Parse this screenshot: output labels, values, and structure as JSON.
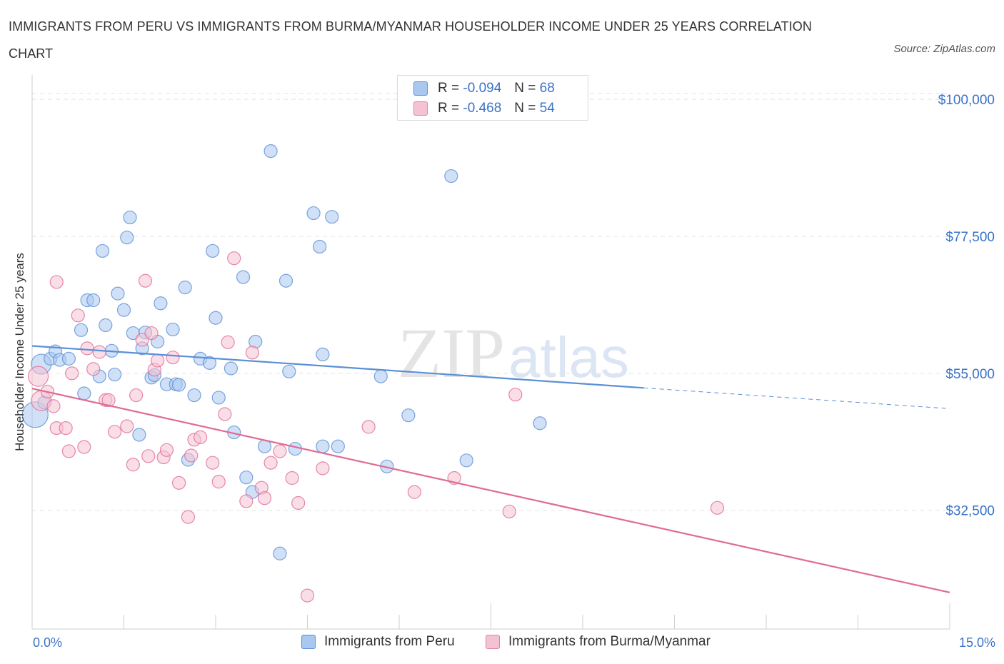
{
  "title": "IMMIGRANTS FROM PERU VS IMMIGRANTS FROM BURMA/MYANMAR HOUSEHOLDER INCOME UNDER 25 YEARS CORRELATION CHART",
  "source": "Source: ZipAtlas.com",
  "watermark": {
    "zip": "ZIP",
    "atlas": "atlas"
  },
  "legend": {
    "r_label": "R =",
    "n_label": "N =",
    "rows": [
      {
        "r": "-0.094",
        "n": "68",
        "color": "#a9c8f0",
        "stroke": "#5b8fd6"
      },
      {
        "r": "-0.468",
        "n": "54",
        "color": "#f5c2d3",
        "stroke": "#e083a4"
      }
    ]
  },
  "chart_data": {
    "type": "scatter",
    "title": "IMMIGRANTS FROM PERU VS IMMIGRANTS FROM BURMA/MYANMAR HOUSEHOLDER INCOME UNDER 25 YEARS CORRELATION CHART",
    "xlabel": "",
    "ylabel": "Householder Income Under 25 years",
    "xlim": [
      0,
      15
    ],
    "ylim": [
      13000,
      104000
    ],
    "x_tick_labels": [
      "0.0%",
      "15.0%"
    ],
    "y_ticks": [
      {
        "value": 100000,
        "label": "$100,000"
      },
      {
        "value": 77500,
        "label": "$77,500"
      },
      {
        "value": 55000,
        "label": "$55,000"
      },
      {
        "value": 32500,
        "label": "$32,500"
      }
    ],
    "grid": true,
    "legend_position": "top-center",
    "series": [
      {
        "name": "Immigrants from Peru",
        "color": "#5b8fd6",
        "fill": "#a9c8f0",
        "trend": {
          "x0": 0.0,
          "y0": 59500,
          "x1": 10.0,
          "y1": 52600,
          "dash_to": 15.0,
          "dash_y": 49200
        },
        "points": [
          [
            0.05,
            48200,
            18
          ],
          [
            0.15,
            56500,
            14
          ],
          [
            0.2,
            50200,
            9
          ],
          [
            0.3,
            57400,
            9
          ],
          [
            0.38,
            58600,
            9
          ],
          [
            0.45,
            57200,
            9
          ],
          [
            0.6,
            57400,
            9
          ],
          [
            0.8,
            62100,
            9
          ],
          [
            0.85,
            51700,
            9
          ],
          [
            0.9,
            67000,
            9
          ],
          [
            1.0,
            67000,
            9
          ],
          [
            1.1,
            54500,
            9
          ],
          [
            1.15,
            75100,
            9
          ],
          [
            1.2,
            62900,
            9
          ],
          [
            1.3,
            58700,
            9
          ],
          [
            1.35,
            54800,
            9
          ],
          [
            1.4,
            68100,
            9
          ],
          [
            1.5,
            65400,
            9
          ],
          [
            1.55,
            77300,
            9
          ],
          [
            1.6,
            80600,
            9
          ],
          [
            1.65,
            61600,
            9
          ],
          [
            1.75,
            44900,
            9
          ],
          [
            1.8,
            59100,
            9
          ],
          [
            1.85,
            61700,
            9
          ],
          [
            1.95,
            54300,
            9
          ],
          [
            2.0,
            54700,
            9
          ],
          [
            2.05,
            60200,
            9
          ],
          [
            2.1,
            66500,
            9
          ],
          [
            2.2,
            53200,
            9
          ],
          [
            2.3,
            62200,
            9
          ],
          [
            2.35,
            53200,
            9
          ],
          [
            2.4,
            53100,
            9
          ],
          [
            2.5,
            69100,
            9
          ],
          [
            2.55,
            40800,
            9
          ],
          [
            2.65,
            51400,
            9
          ],
          [
            2.75,
            57400,
            9
          ],
          [
            2.9,
            56700,
            9
          ],
          [
            2.95,
            75100,
            9
          ],
          [
            3.0,
            64100,
            9
          ],
          [
            3.05,
            51000,
            9
          ],
          [
            3.25,
            55800,
            9
          ],
          [
            3.3,
            45300,
            9
          ],
          [
            3.45,
            70800,
            9
          ],
          [
            3.5,
            37900,
            9
          ],
          [
            3.6,
            35500,
            9
          ],
          [
            3.65,
            60200,
            9
          ],
          [
            3.8,
            43000,
            9
          ],
          [
            3.9,
            91500,
            9
          ],
          [
            4.05,
            25400,
            9
          ],
          [
            4.15,
            70200,
            9
          ],
          [
            4.2,
            55300,
            9
          ],
          [
            4.3,
            42600,
            9
          ],
          [
            4.6,
            81300,
            9
          ],
          [
            4.7,
            75800,
            9
          ],
          [
            4.75,
            43000,
            9
          ],
          [
            4.75,
            58100,
            9
          ],
          [
            4.9,
            80700,
            9
          ],
          [
            5.0,
            43000,
            9
          ],
          [
            5.7,
            54500,
            9
          ],
          [
            5.8,
            39700,
            9
          ],
          [
            6.15,
            48100,
            9
          ],
          [
            6.85,
            87400,
            9
          ],
          [
            7.1,
            40700,
            9
          ],
          [
            8.3,
            46800,
            9
          ]
        ]
      },
      {
        "name": "Immigrants from Burma/Myanmar",
        "color": "#e06b93",
        "fill": "#f5c2d3",
        "trend": {
          "x0": 0.0,
          "y0": 52500,
          "x1": 15.0,
          "y1": 19000
        },
        "points": [
          [
            0.1,
            54500,
            14
          ],
          [
            0.15,
            50500,
            14
          ],
          [
            0.25,
            52000,
            9
          ],
          [
            0.35,
            49600,
            9
          ],
          [
            0.4,
            46000,
            9
          ],
          [
            0.4,
            70000,
            9
          ],
          [
            0.55,
            46000,
            9
          ],
          [
            0.6,
            42200,
            9
          ],
          [
            0.65,
            55000,
            9
          ],
          [
            0.75,
            64500,
            9
          ],
          [
            0.85,
            42900,
            9
          ],
          [
            0.9,
            59100,
            9
          ],
          [
            1.0,
            55700,
            9
          ],
          [
            1.1,
            58500,
            9
          ],
          [
            1.2,
            50600,
            9
          ],
          [
            1.25,
            50600,
            9
          ],
          [
            1.35,
            45400,
            9
          ],
          [
            1.55,
            46300,
            9
          ],
          [
            1.65,
            40000,
            9
          ],
          [
            1.7,
            51400,
            9
          ],
          [
            1.8,
            60500,
            9
          ],
          [
            1.85,
            70200,
            9
          ],
          [
            1.9,
            41400,
            9
          ],
          [
            1.95,
            61600,
            9
          ],
          [
            2.0,
            55600,
            9
          ],
          [
            2.05,
            57100,
            9
          ],
          [
            2.15,
            41200,
            9
          ],
          [
            2.2,
            42400,
            9
          ],
          [
            2.3,
            57600,
            9
          ],
          [
            2.4,
            37000,
            9
          ],
          [
            2.55,
            31400,
            9
          ],
          [
            2.6,
            41500,
            9
          ],
          [
            2.65,
            44100,
            9
          ],
          [
            2.75,
            44500,
            9
          ],
          [
            2.95,
            40300,
            9
          ],
          [
            3.05,
            37200,
            9
          ],
          [
            3.15,
            48300,
            9
          ],
          [
            3.2,
            60100,
            9
          ],
          [
            3.3,
            73900,
            9
          ],
          [
            3.5,
            34000,
            9
          ],
          [
            3.6,
            58400,
            9
          ],
          [
            3.75,
            36200,
            9
          ],
          [
            3.8,
            34500,
            9
          ],
          [
            3.9,
            40300,
            9
          ],
          [
            4.05,
            42200,
            9
          ],
          [
            4.25,
            37800,
            9
          ],
          [
            4.35,
            33700,
            9
          ],
          [
            4.5,
            18500,
            9
          ],
          [
            4.75,
            39400,
            9
          ],
          [
            5.5,
            46200,
            9
          ],
          [
            6.25,
            35500,
            9
          ],
          [
            6.9,
            37800,
            9
          ],
          [
            7.8,
            32300,
            9
          ],
          [
            7.9,
            51500,
            9
          ],
          [
            11.2,
            32900,
            9
          ]
        ]
      }
    ]
  }
}
